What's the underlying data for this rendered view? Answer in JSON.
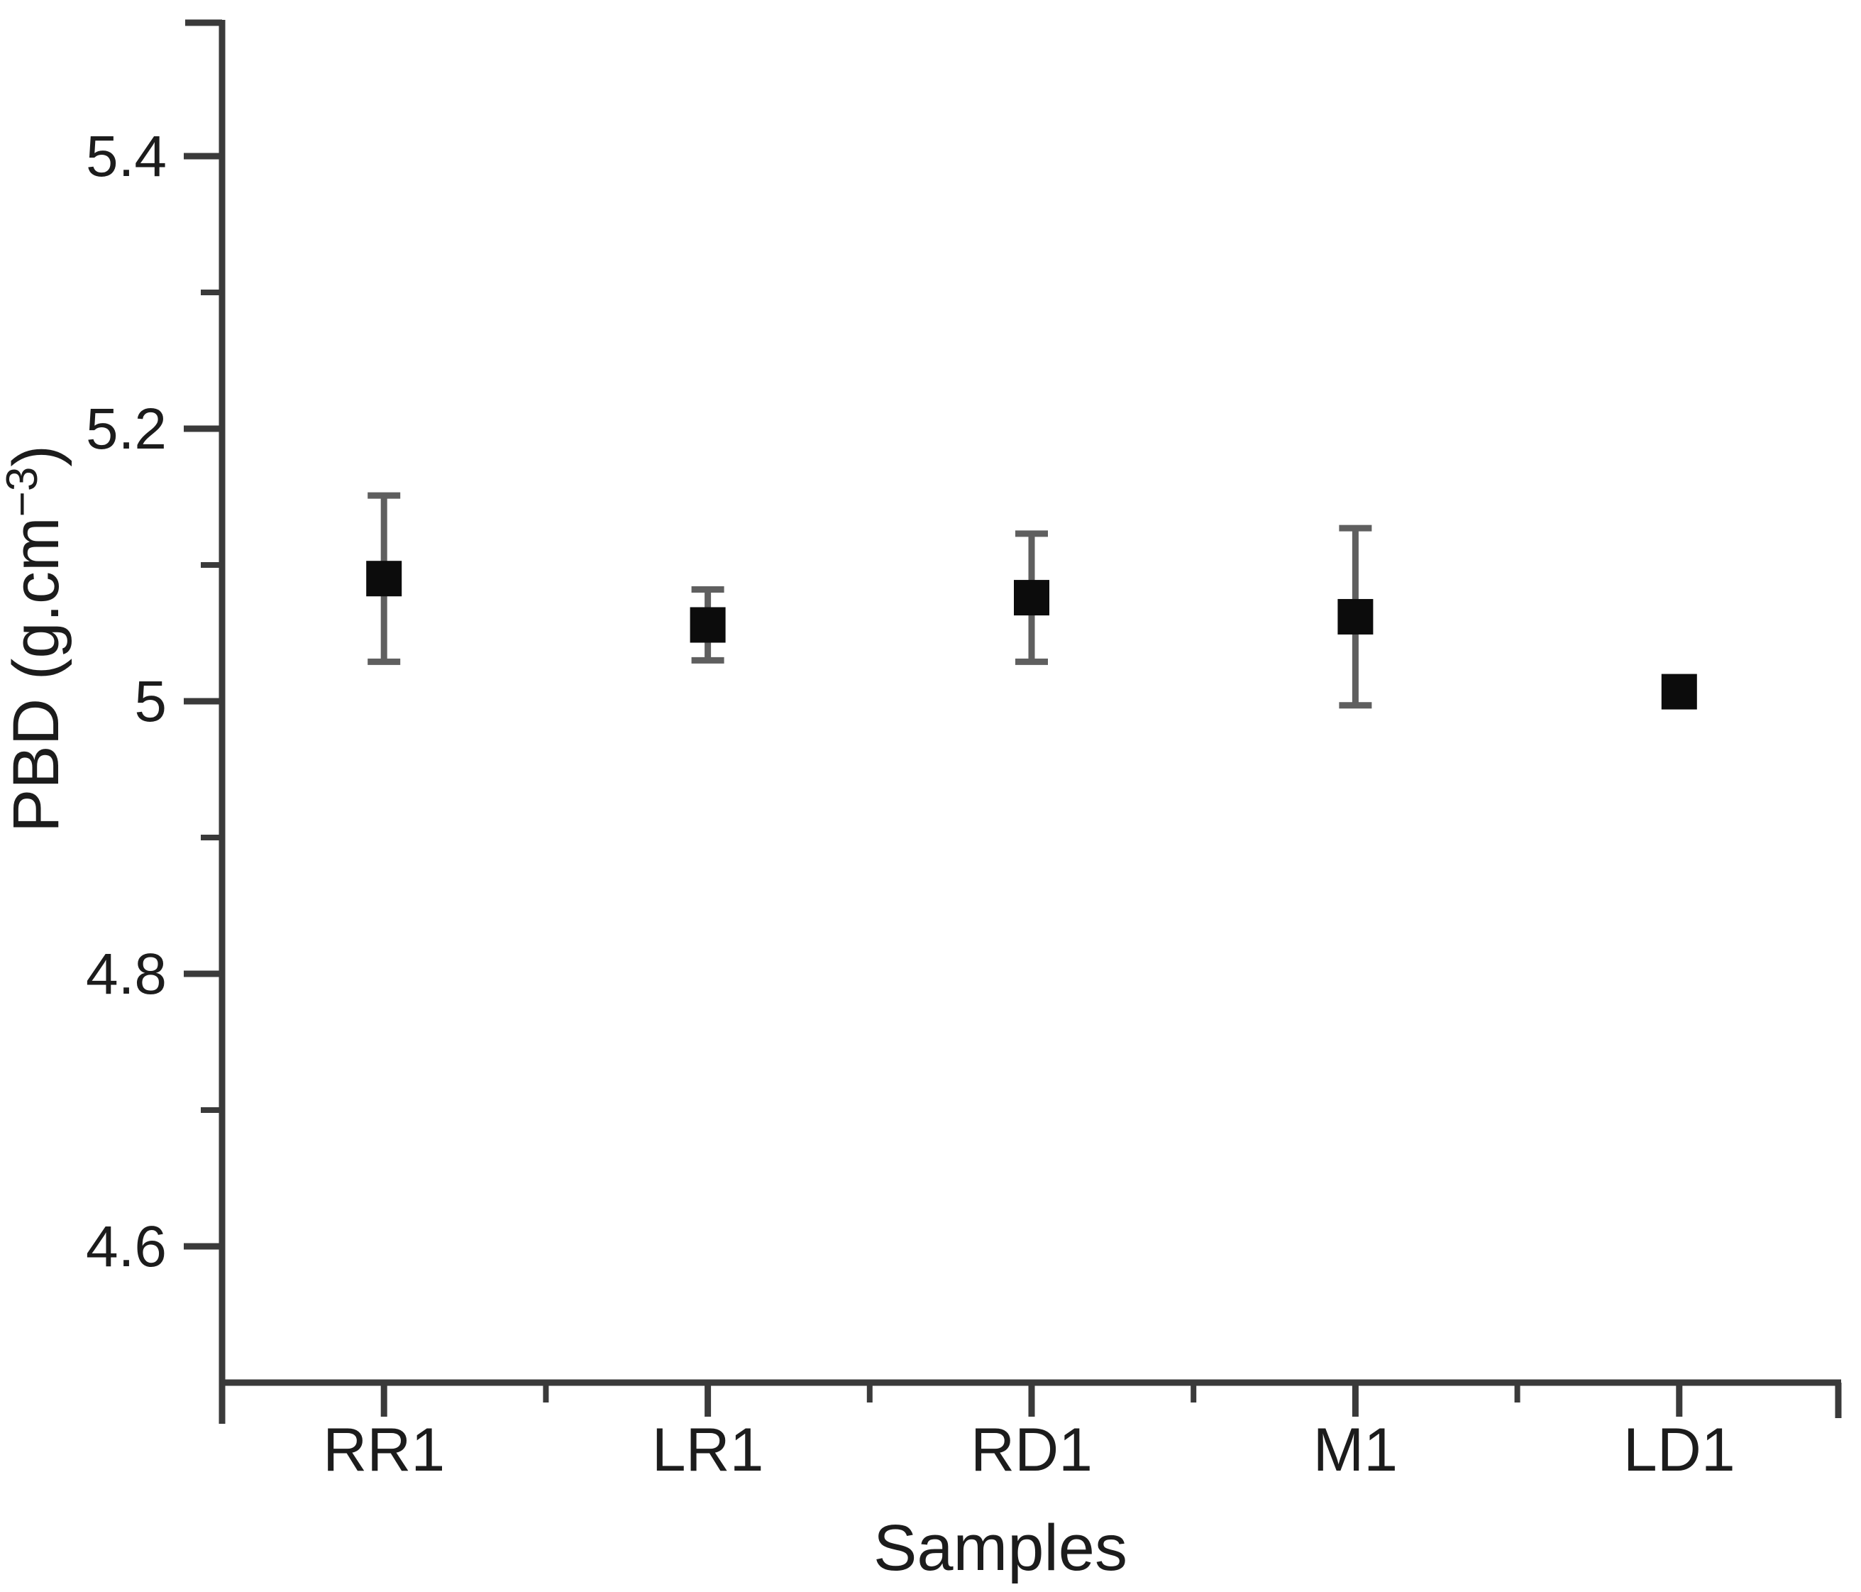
{
  "chart_data": {
    "type": "scatter",
    "title": "",
    "xlabel": "Samples",
    "ylabel": "PBD (g.cm⁻³)",
    "ylabel_parts": {
      "pre": "PBD (g.cm",
      "sup": "−3",
      "post": ")"
    },
    "categories": [
      "RR1",
      "LR1",
      "RD1",
      "M1",
      "LD1"
    ],
    "series": [
      {
        "name": "PBD",
        "values": [
          5.09,
          5.056,
          5.076,
          5.062,
          5.007
        ],
        "errors": [
          0.061,
          0.026,
          0.047,
          0.065,
          0
        ]
      }
    ],
    "ylim": [
      4.5,
      5.5
    ],
    "y_major_ticks": [
      {
        "value": 5.4,
        "label": "5.4"
      },
      {
        "value": 5.2,
        "label": "5.2"
      },
      {
        "value": 5.0,
        "label": "5"
      },
      {
        "value": 4.8,
        "label": "4.8"
      },
      {
        "value": 4.6,
        "label": "4.6"
      }
    ],
    "y_minor_tick_values": [
      5.3,
      5.1,
      4.9,
      4.7
    ],
    "grid": false,
    "legend": "none",
    "marker": "filled-square",
    "colors": {
      "marker": "#0c0c0c",
      "error_bar": "#5f5f5f",
      "axis": "#3a3a3a",
      "text": "#1c1c1c",
      "background": "#ffffff"
    }
  }
}
